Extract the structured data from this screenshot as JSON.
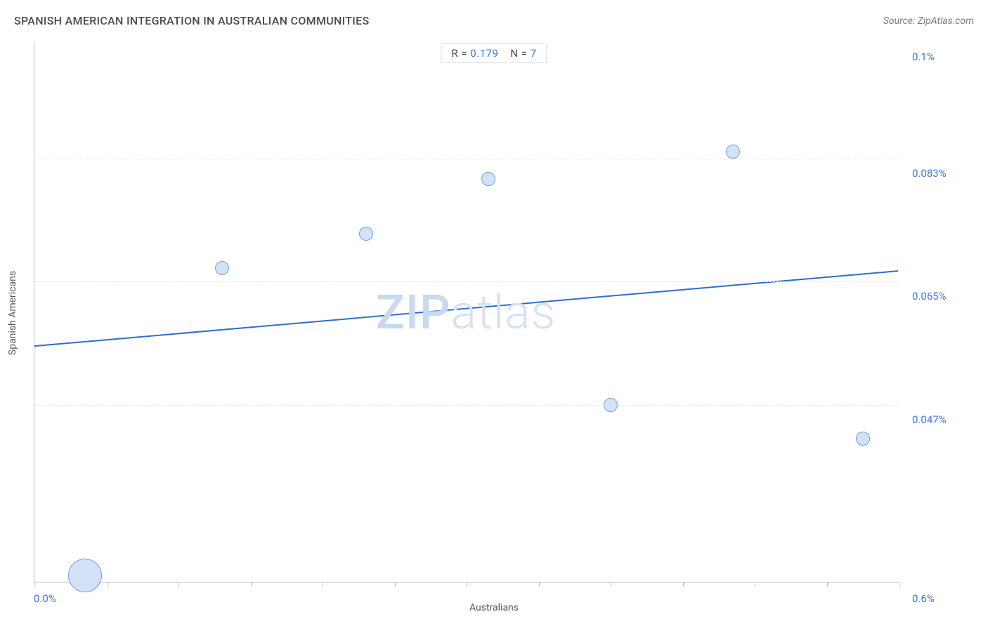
{
  "header": {
    "title": "SPANISH AMERICAN INTEGRATION IN AUSTRALIAN COMMUNITIES",
    "source": "Source: ZipAtlas.com"
  },
  "stats": {
    "r_label": "R =",
    "r_value": "0.179",
    "n_label": "N =",
    "n_value": "7"
  },
  "watermark": {
    "part1": "ZIP",
    "part2": "atlas"
  },
  "chart": {
    "type": "scatter",
    "background_color": "#ffffff",
    "grid_color": "#e5e5e5",
    "axis_color": "#c0c0c0",
    "tick_label_color": "#3b78d8",
    "axis_label_color": "#555555",
    "x_axis_label": "Australians",
    "y_axis_label": "Spanish Americans",
    "xlim": [
      0.0,
      0.6
    ],
    "ylim": [
      0.021,
      0.1
    ],
    "x_range_labels": [
      "0.0%",
      "0.6%"
    ],
    "y_ticks": [
      {
        "value": 0.1,
        "label": "0.1%"
      },
      {
        "value": 0.083,
        "label": "0.083%"
      },
      {
        "value": 0.065,
        "label": "0.065%"
      },
      {
        "value": 0.047,
        "label": "0.047%"
      }
    ],
    "x_tick_count": 13,
    "point_fill": "#d3e3f7",
    "point_stroke": "#6fa0dd",
    "points": [
      {
        "x": 0.035,
        "y": 0.022,
        "r": 24
      },
      {
        "x": 0.13,
        "y": 0.067,
        "r": 10
      },
      {
        "x": 0.23,
        "y": 0.072,
        "r": 10
      },
      {
        "x": 0.315,
        "y": 0.08,
        "r": 10
      },
      {
        "x": 0.4,
        "y": 0.047,
        "r": 10
      },
      {
        "x": 0.485,
        "y": 0.084,
        "r": 10
      },
      {
        "x": 0.575,
        "y": 0.042,
        "r": 10
      }
    ],
    "trend_line": {
      "color": "#2f6bd1",
      "width": 2,
      "y_at_xmin": 0.0555,
      "y_at_xmax": 0.0665
    },
    "label_fontsize": 14,
    "tick_fontsize": 15
  }
}
